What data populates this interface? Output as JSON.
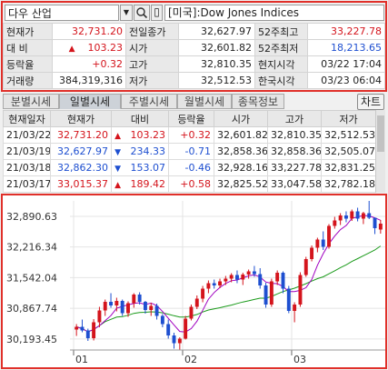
{
  "search": {
    "stock_name": "다우 산업",
    "index_name": "[미국]:Dow Jones Indices",
    "dropdown_glyph": "▼",
    "clear_glyph": "▯"
  },
  "quote": {
    "rows": [
      [
        {
          "label": "현재가"
        },
        {
          "value": "32,731.20",
          "color": "red"
        },
        {
          "label": "전일종가"
        },
        {
          "value": "32,627.97"
        },
        {
          "label": "52주최고"
        },
        {
          "value": "33,227.78",
          "color": "red"
        }
      ],
      [
        {
          "label": "대 비"
        },
        {
          "value": "103.23",
          "color": "red",
          "arrow": "▲"
        },
        {
          "label": "시가"
        },
        {
          "value": "32,601.82"
        },
        {
          "label": "52주최저"
        },
        {
          "value": "18,213.65",
          "color": "blue"
        }
      ],
      [
        {
          "label": "등락율"
        },
        {
          "value": "+0.32",
          "color": "red"
        },
        {
          "label": "고가"
        },
        {
          "value": "32,810.35"
        },
        {
          "label": "현지시각"
        },
        {
          "value": "03/22 17:04"
        }
      ],
      [
        {
          "label": "거래량"
        },
        {
          "value": "384,319,316"
        },
        {
          "label": "저가"
        },
        {
          "value": "32,512.53"
        },
        {
          "label": "한국시각"
        },
        {
          "value": "03/23 06:04"
        }
      ]
    ]
  },
  "tabs": [
    "분별시세",
    "일별시세",
    "주별시세",
    "월별시세",
    "종목정보"
  ],
  "active_tab": 1,
  "chart_button": "차트",
  "daily": {
    "headers": [
      "현재일자",
      "현재가",
      "대비",
      "등락율",
      "시가",
      "고가",
      "저가"
    ],
    "rows": [
      {
        "date": "21/03/22",
        "close": "32,731.20",
        "dir": "up",
        "change": "103.23",
        "rate": "+0.32",
        "open": "32,601.82",
        "high": "32,810.35",
        "low": "32,512.53"
      },
      {
        "date": "21/03/19",
        "close": "32,627.97",
        "dir": "down",
        "change": "234.33",
        "rate": "-0.71",
        "open": "32,858.36",
        "high": "32,858.36",
        "low": "32,505.07"
      },
      {
        "date": "21/03/18",
        "close": "32,862.30",
        "dir": "down",
        "change": "153.07",
        "rate": "-0.46",
        "open": "32,928.16",
        "high": "33,227.78",
        "low": "32,831.25"
      },
      {
        "date": "21/03/17",
        "close": "33,015.37",
        "dir": "up",
        "change": "189.42",
        "rate": "+0.58",
        "open": "32,825.52",
        "high": "33,047.58",
        "low": "32,782.18"
      }
    ]
  },
  "colors": {
    "up": "#d4141c",
    "down": "#1e4fd0",
    "ma_short": "#a000c0",
    "ma_long": "#1a9a1a",
    "frame": "#e0302a"
  },
  "chart_data": {
    "type": "candlestick",
    "y_ticks": [
      "32,890.63",
      "32,216.34",
      "31,542.04",
      "30,867.74",
      "30,193.45"
    ],
    "y_tick_values": [
      32890.63,
      32216.34,
      31542.04,
      30867.74,
      30193.45
    ],
    "x_labels": [
      "01",
      "02",
      "03"
    ],
    "ylim": [
      29950,
      33230
    ],
    "candles": [
      [
        30400,
        30520,
        30260,
        30460
      ],
      [
        30460,
        30620,
        30340,
        30380
      ],
      [
        30380,
        30420,
        30150,
        30210
      ],
      [
        30210,
        30630,
        30160,
        30560
      ],
      [
        30560,
        30900,
        30450,
        30820
      ],
      [
        30820,
        31060,
        30700,
        31010
      ],
      [
        31010,
        31200,
        30880,
        30930
      ],
      [
        30930,
        31100,
        30800,
        31030
      ],
      [
        31030,
        31060,
        30700,
        30760
      ],
      [
        30760,
        31020,
        30680,
        30980
      ],
      [
        30980,
        31200,
        30880,
        31170
      ],
      [
        31170,
        31220,
        30950,
        31010
      ],
      [
        31010,
        31030,
        30750,
        30830
      ],
      [
        30830,
        30990,
        30700,
        30920
      ],
      [
        30920,
        30970,
        30620,
        30700
      ],
      [
        30700,
        30740,
        30450,
        30520
      ],
      [
        30520,
        30620,
        30200,
        30270
      ],
      [
        30270,
        30330,
        29980,
        30100
      ],
      [
        30100,
        30230,
        29960,
        30200
      ],
      [
        30200,
        30700,
        30180,
        30640
      ],
      [
        30640,
        30950,
        30600,
        30900
      ],
      [
        30900,
        31150,
        30850,
        31080
      ],
      [
        31080,
        31360,
        31000,
        31300
      ],
      [
        31300,
        31480,
        31200,
        31420
      ],
      [
        31420,
        31500,
        31300,
        31370
      ],
      [
        31370,
        31520,
        31310,
        31460
      ],
      [
        31460,
        31580,
        31380,
        31520
      ],
      [
        31520,
        31640,
        31440,
        31600
      ],
      [
        31600,
        31700,
        31420,
        31500
      ],
      [
        31500,
        31650,
        31380,
        31610
      ],
      [
        31610,
        31720,
        31520,
        31680
      ],
      [
        31680,
        31800,
        31560,
        31620
      ],
      [
        31620,
        31750,
        31300,
        31370
      ],
      [
        31370,
        31430,
        30880,
        30950
      ],
      [
        30950,
        31520,
        30900,
        31460
      ],
      [
        31460,
        31700,
        31380,
        31650
      ],
      [
        31650,
        31680,
        31200,
        31300
      ],
      [
        31300,
        31360,
        30760,
        30810
      ],
      [
        30810,
        31000,
        30560,
        30950
      ],
      [
        30950,
        31660,
        30900,
        31600
      ],
      [
        31600,
        32000,
        31560,
        31950
      ],
      [
        31950,
        32250,
        31900,
        32200
      ],
      [
        32200,
        32420,
        32100,
        32380
      ],
      [
        32380,
        32560,
        32150,
        32220
      ],
      [
        32220,
        32720,
        32180,
        32680
      ],
      [
        32680,
        32880,
        32620,
        32800
      ],
      [
        32800,
        32960,
        32700,
        32910
      ],
      [
        32910,
        33000,
        32760,
        32840
      ],
      [
        32840,
        33040,
        32790,
        33000
      ],
      [
        33000,
        33080,
        32780,
        32840
      ],
      [
        32840,
        32990,
        32720,
        32960
      ],
      [
        32960,
        33230,
        32830,
        32860
      ],
      [
        32860,
        32860,
        32500,
        32630
      ],
      [
        32600,
        32810,
        32510,
        32730
      ]
    ]
  }
}
